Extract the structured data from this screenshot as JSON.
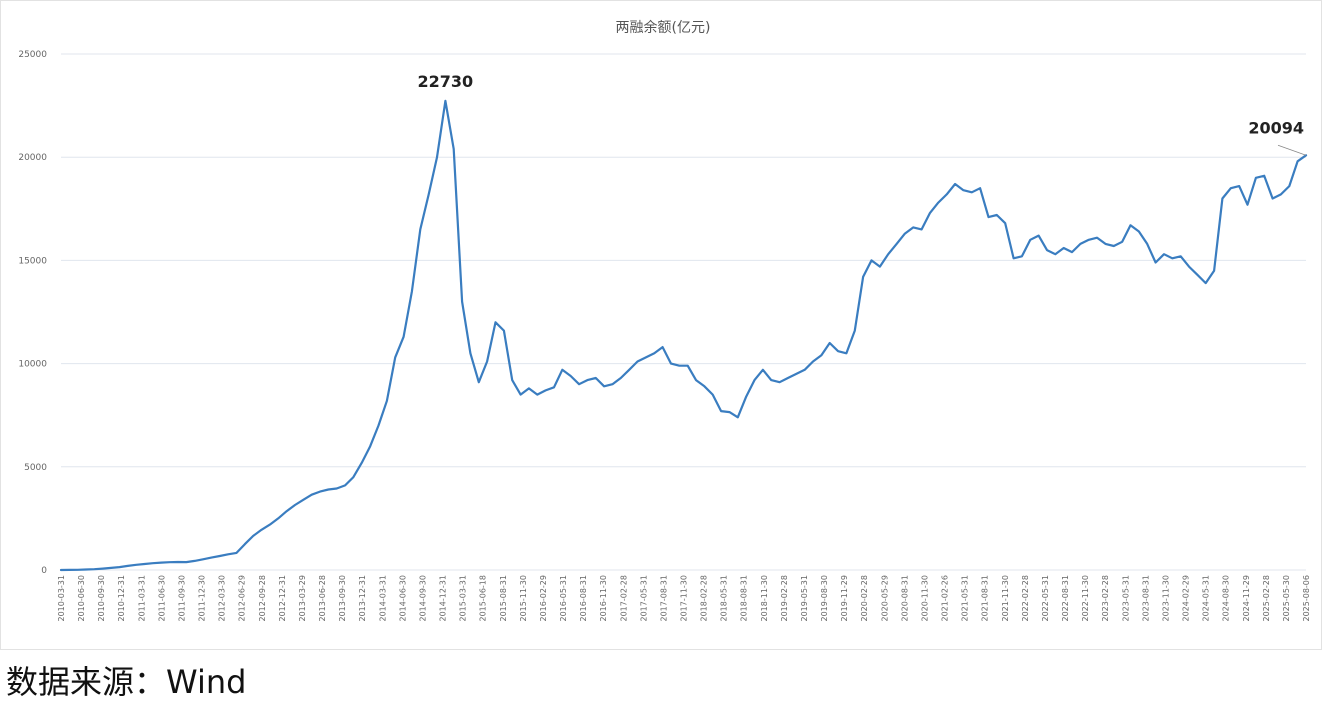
{
  "source_note": "数据来源：Wind",
  "colors": {
    "line": "#3a7dc0",
    "grid": "#e0e6ee",
    "axis_text": "#666666"
  },
  "chart_data": {
    "type": "line",
    "title": "两融余额(亿元)",
    "xlabel": "",
    "ylabel": "",
    "ylim": [
      0,
      25000
    ],
    "y_ticks": [
      0,
      5000,
      10000,
      15000,
      20000,
      25000
    ],
    "x_tick_labels": [
      "2010-03-31",
      "2010-06-30",
      "2010-09-30",
      "2010-12-31",
      "2011-03-31",
      "2011-06-30",
      "2011-09-30",
      "2011-12-30",
      "2012-03-30",
      "2012-06-29",
      "2012-09-28",
      "2012-12-31",
      "2013-03-29",
      "2013-06-28",
      "2013-09-30",
      "2013-12-31",
      "2014-03-31",
      "2014-06-30",
      "2014-09-30",
      "2014-12-31",
      "2015-03-31",
      "2015-06-18",
      "2015-08-31",
      "2015-11-30",
      "2016-02-29",
      "2016-05-31",
      "2016-08-31",
      "2016-11-30",
      "2017-02-28",
      "2017-05-31",
      "2017-08-31",
      "2017-11-30",
      "2018-02-28",
      "2018-05-31",
      "2018-08-31",
      "2018-11-30",
      "2019-02-28",
      "2019-05-31",
      "2019-08-30",
      "2019-11-29",
      "2020-02-28",
      "2020-05-29",
      "2020-08-31",
      "2020-11-30",
      "2021-02-26",
      "2021-05-31",
      "2021-08-31",
      "2021-11-30",
      "2022-02-28",
      "2022-05-31",
      "2022-08-31",
      "2022-11-30",
      "2023-02-28",
      "2023-05-31",
      "2023-08-31",
      "2023-11-30",
      "2024-02-29",
      "2024-05-31",
      "2024-08-30",
      "2024-11-29",
      "2025-02-28",
      "2025-05-30",
      "2025-08-06"
    ],
    "grid": true,
    "legend": "none",
    "series": [
      {
        "values": [
          0,
          5,
          12,
          25,
          40,
          70,
          100,
          140,
          200,
          250,
          290,
          330,
          360,
          380,
          390,
          385,
          440,
          520,
          600,
          680,
          760,
          830,
          1250,
          1650,
          1950,
          2200,
          2500,
          2850,
          3150,
          3400,
          3650,
          3800,
          3900,
          3950,
          4100,
          4500,
          5200,
          6000,
          7000,
          8200,
          10300,
          11300,
          13500,
          16500,
          18200,
          20000,
          22730,
          20400,
          13000,
          10500,
          9100,
          10100,
          12000,
          11600,
          9200,
          8500,
          8800,
          8500,
          8700,
          8850,
          9700,
          9400,
          9000,
          9200,
          9300,
          8900,
          9000,
          9300,
          9700,
          10100,
          10300,
          10500,
          10800,
          10000,
          9900,
          9900,
          9200,
          8900,
          8500,
          7700,
          7650,
          7400,
          8400,
          9200,
          9700,
          9200,
          9100,
          9300,
          9500,
          9700,
          10100,
          10400,
          11000,
          10600,
          10500,
          11600,
          14200,
          15000,
          14700,
          15300,
          15800,
          16300,
          16600,
          16500,
          17300,
          17800,
          18200,
          18700,
          18400,
          18300,
          18500,
          17100,
          17200,
          16800,
          15100,
          15200,
          16000,
          16200,
          15500,
          15300,
          15600,
          15400,
          15800,
          16000,
          16100,
          15800,
          15700,
          15900,
          16700,
          16400,
          15800,
          14900,
          15300,
          15100,
          15200,
          14700,
          14300,
          13900,
          14500,
          18000,
          18500,
          18600,
          17700,
          19000,
          19100,
          18000,
          18200,
          18600,
          19800,
          20094
        ]
      }
    ],
    "annotations": [
      {
        "label": "22730",
        "value": 22730
      },
      {
        "label": "20094",
        "value": 20094
      }
    ]
  }
}
